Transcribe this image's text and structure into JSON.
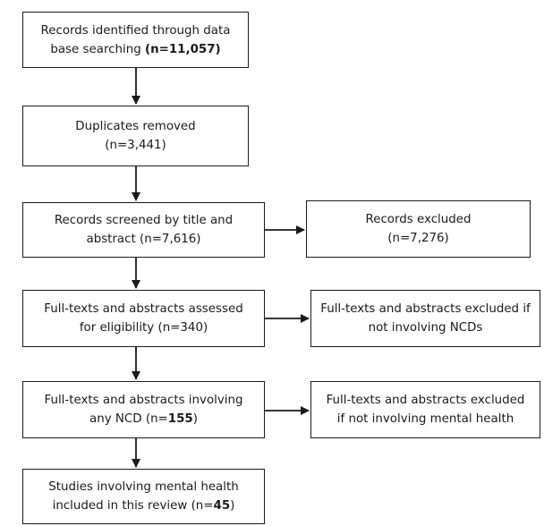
{
  "boxes": {
    "identified": {
      "line1": "Records identified through data",
      "line2_pre": "base searching ",
      "line2_bold": "(n=11,057)"
    },
    "duplicates": {
      "line1": "Duplicates removed",
      "line2": "(n=3,441)"
    },
    "screened": {
      "line1": "Records screened by title and",
      "line2": "abstract (n=7,616)"
    },
    "excluded_screen": {
      "line1": "Records excluded",
      "line2": "(n=7,276)"
    },
    "eligibility": {
      "line1": "Full-texts and abstracts assessed",
      "line2": "for eligibility (n=340)"
    },
    "excluded_ncd": {
      "line1": "Full-texts and abstracts excluded if",
      "line2": "not involving NCDs"
    },
    "ncd": {
      "line1": "Full-texts and abstracts involving",
      "line2_pre": "any NCD (n=",
      "line2_bold": "155",
      "line2_post": ")"
    },
    "excluded_mh": {
      "line1": "Full-texts and abstracts excluded",
      "line2": "if not involving mental health"
    },
    "included": {
      "line1": "Studies involving mental health",
      "line2_pre": "included in this review (n=",
      "line2_bold": "45",
      "line2_post": ")"
    }
  }
}
